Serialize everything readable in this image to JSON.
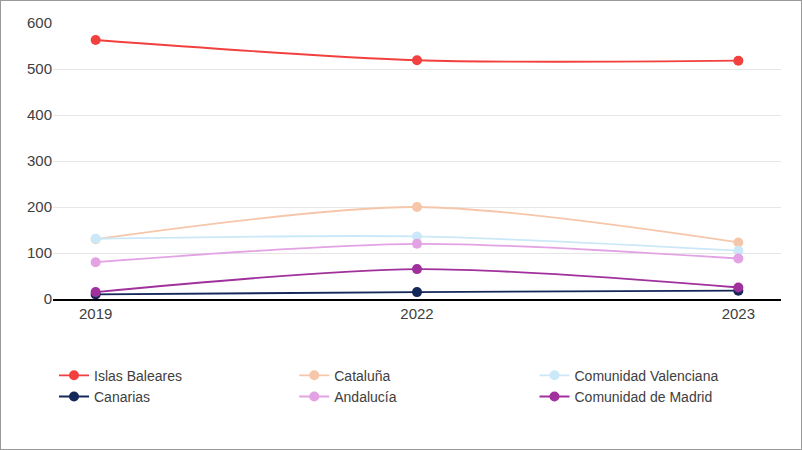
{
  "chart_data": {
    "type": "line",
    "categories": [
      "2019",
      "2022",
      "2023"
    ],
    "series": [
      {
        "name": "Islas Baleares",
        "color": "#f2403f",
        "values": [
          563,
          519,
          518
        ]
      },
      {
        "name": "Cataluña",
        "color": "#f6c6aa",
        "values": [
          130,
          200,
          123
        ]
      },
      {
        "name": "Comunidad Valenciana",
        "color": "#cbe8f8",
        "values": [
          131,
          136,
          105
        ]
      },
      {
        "name": "Canarias",
        "color": "#14285a",
        "values": [
          10,
          15,
          18
        ]
      },
      {
        "name": "Andalucía",
        "color": "#e3a2e3",
        "values": [
          80,
          120,
          88
        ]
      },
      {
        "name": "Comunidad de Madrid",
        "color": "#a0309b",
        "values": [
          15,
          65,
          25
        ]
      }
    ],
    "ylim": [
      0,
      600
    ],
    "yticks": [
      0,
      100,
      200,
      300,
      400,
      500,
      600
    ],
    "grid": true,
    "legend": "bottom",
    "marker": "circle",
    "line_style": "smooth"
  }
}
